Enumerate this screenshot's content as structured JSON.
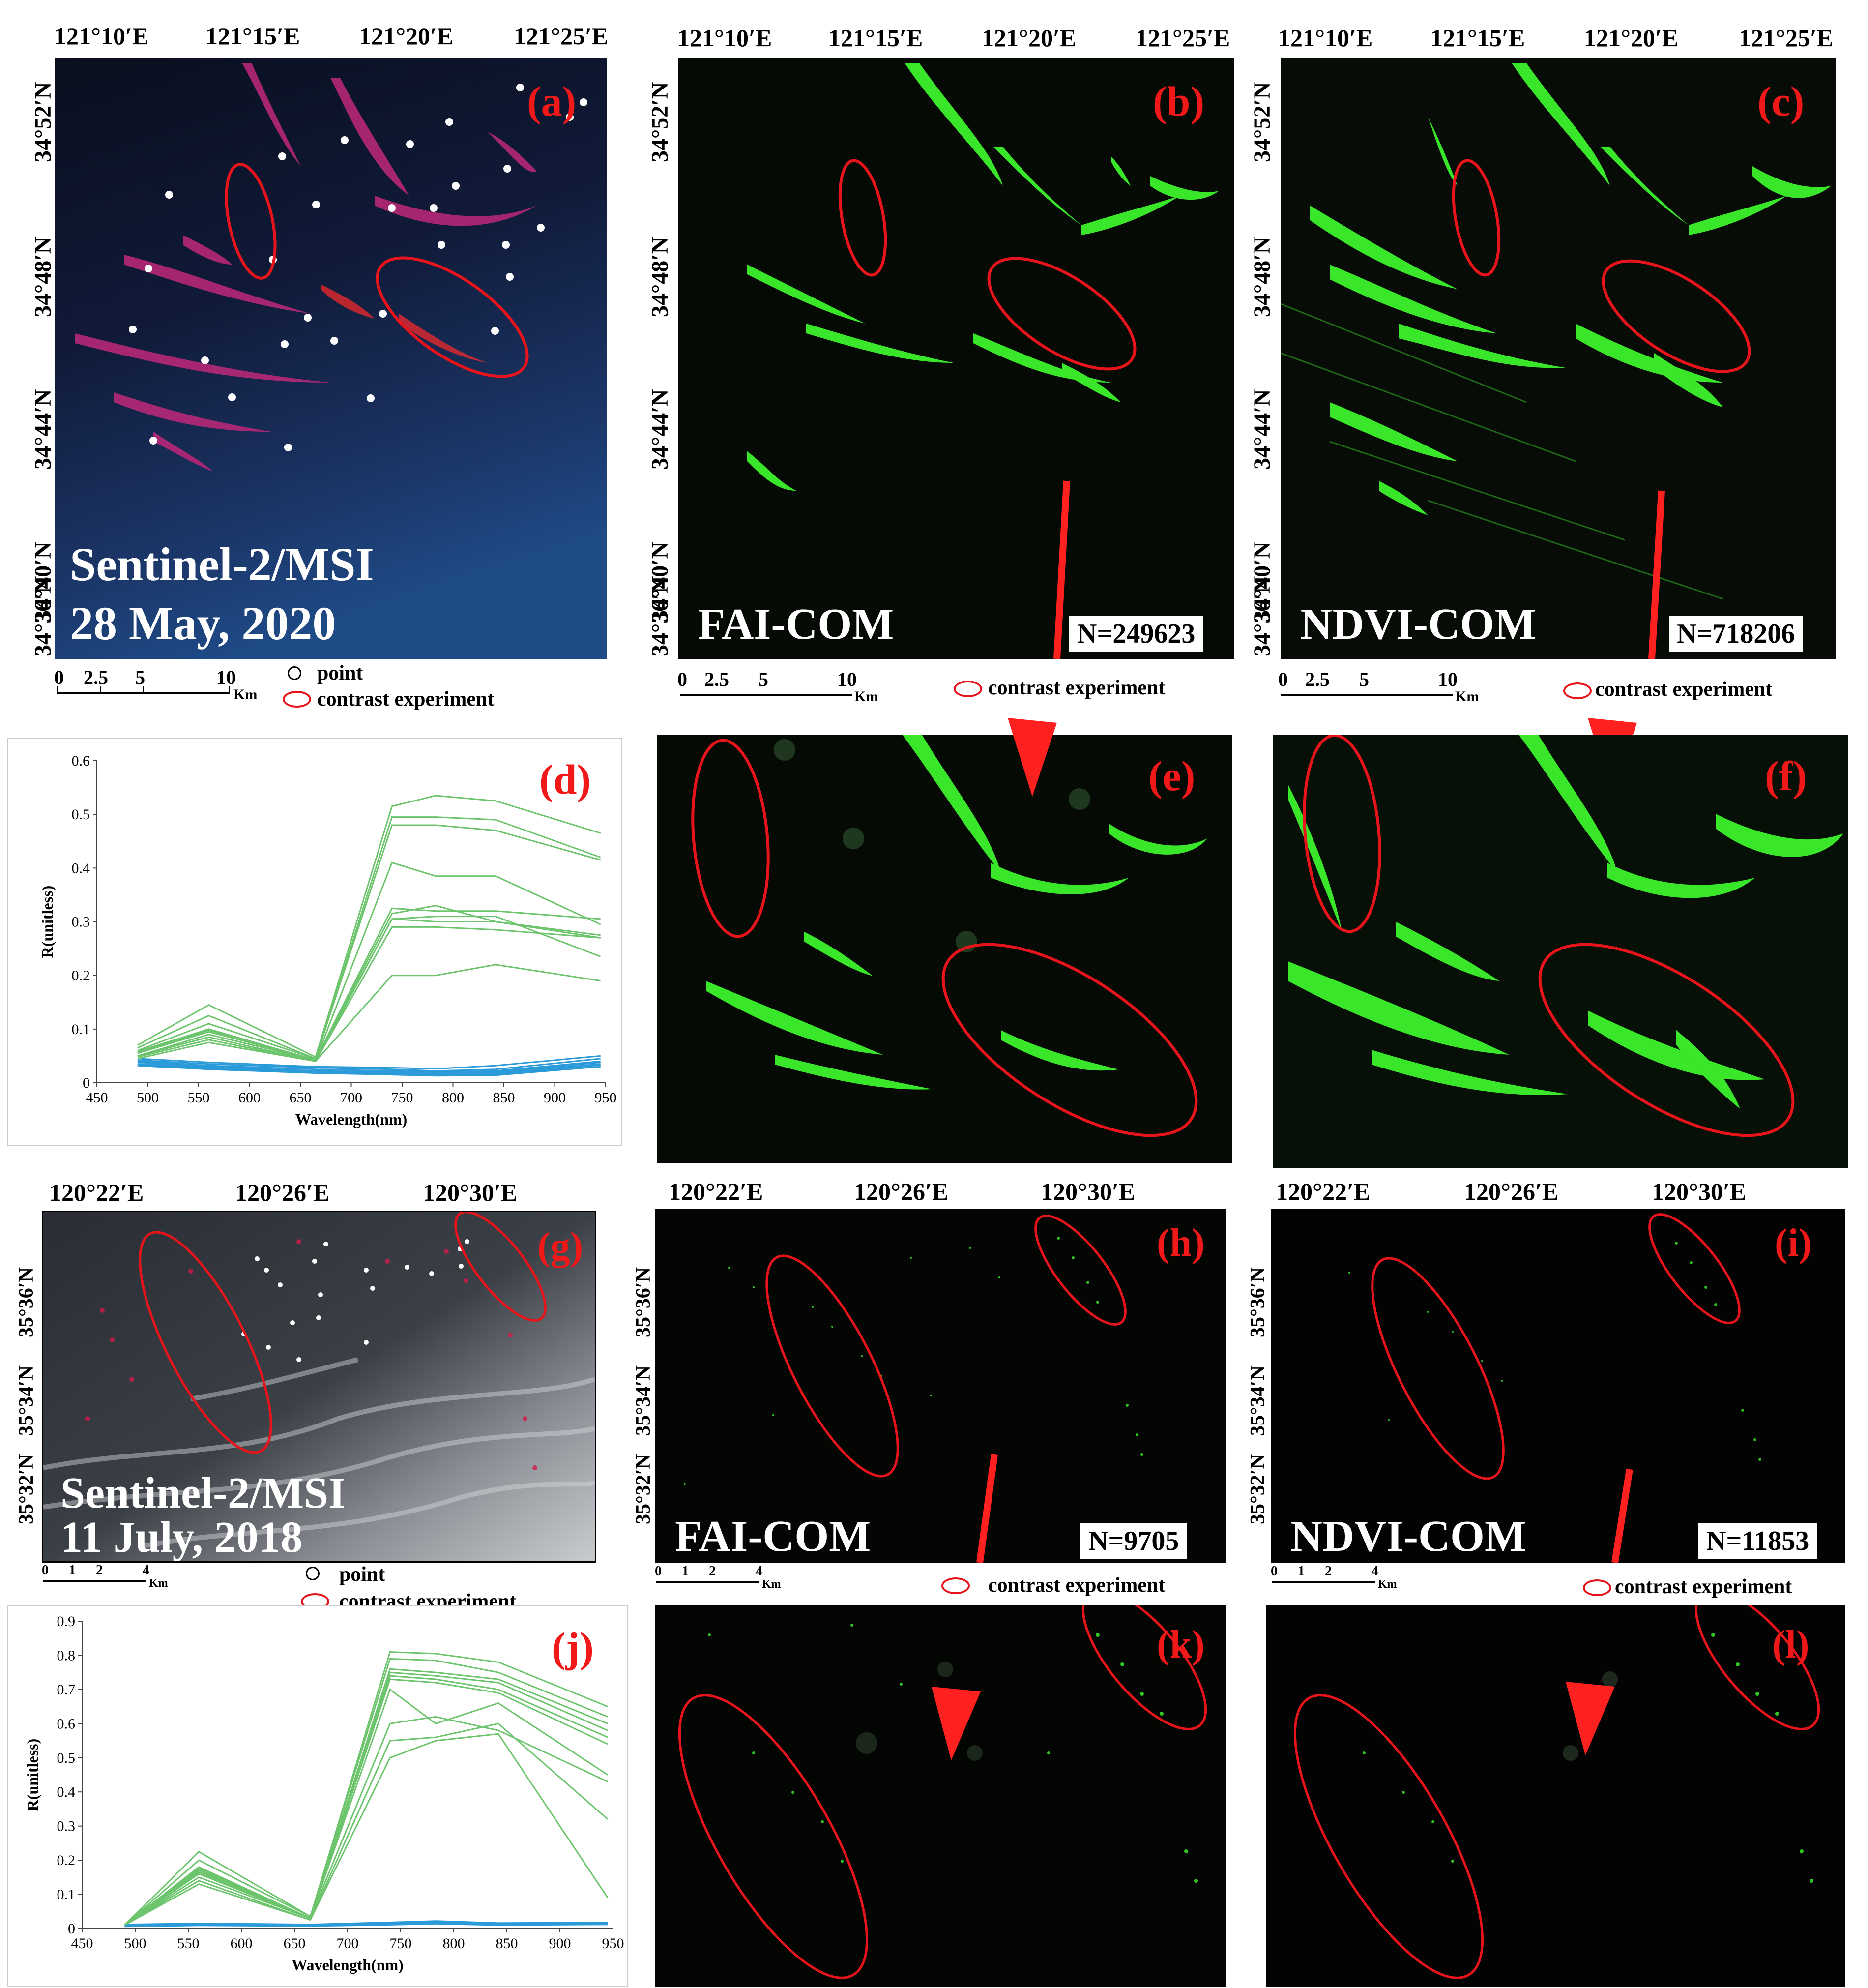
{
  "panels": {
    "a": {
      "label": "(a)",
      "sat": "Sentinel-2/MSI",
      "date": "28 May, 2020"
    },
    "b": {
      "label": "(b)",
      "method": "FAI-COM",
      "count": "N=249623"
    },
    "c": {
      "label": "(c)",
      "method": "NDVI-COM",
      "count": "N=718206"
    },
    "d": {
      "label": "(d)"
    },
    "e": {
      "label": "(e)"
    },
    "f": {
      "label": "(f)"
    },
    "g": {
      "label": "(g)",
      "sat": "Sentinel-2/MSI",
      "date": "11 July, 2018"
    },
    "h": {
      "label": "(h)",
      "method": "FAI-COM",
      "count": "N=9705"
    },
    "i": {
      "label": "(i)",
      "method": "NDVI-COM",
      "count": "N=11853"
    },
    "j": {
      "label": "(j)"
    },
    "k": {
      "label": "(k)"
    },
    "l": {
      "label": "(l)"
    }
  },
  "top_lon_ticks": [
    "121°10′E",
    "121°15′E",
    "121°20′E",
    "121°25′E"
  ],
  "top_lat_ticks": [
    "34°52′N",
    "34°48′N",
    "34°44′N",
    "34°40′N",
    "34°36′N"
  ],
  "bottom_lon_ticks": [
    "120°22′E",
    "120°26′E",
    "120°30′E"
  ],
  "bottom_lat_ticks": [
    "35°36′N",
    "35°34′N",
    "35°32′N"
  ],
  "scalebar_top": {
    "ticks": [
      "0",
      "2.5",
      "5",
      "10"
    ],
    "unit": "Km"
  },
  "scalebar_bottom": {
    "ticks": [
      "0",
      "1",
      "2",
      "4"
    ],
    "unit": "Km"
  },
  "legend": {
    "point": "point",
    "contrast": "contrast experiment"
  },
  "colors": {
    "label_red": "#f01818",
    "green_line": "#6cc46c",
    "blue_line": "#2b9ad8",
    "algae_green": "#39e62a"
  },
  "chart_data": [
    {
      "type": "line",
      "panel": "(d)",
      "xlabel": "Wavelength(nm)",
      "ylabel": "R(unitless)",
      "xlim": [
        450,
        950
      ],
      "ylim": [
        0,
        0.6
      ],
      "xticks": [
        450,
        500,
        550,
        600,
        650,
        700,
        750,
        800,
        850,
        900,
        950
      ],
      "yticks": [
        0,
        0.1,
        0.2,
        0.3,
        0.4,
        0.5,
        0.6
      ],
      "x": [
        490,
        560,
        665,
        740,
        783,
        842,
        945
      ],
      "green_series": [
        [
          0.07,
          0.145,
          0.048,
          0.515,
          0.535,
          0.525,
          0.465
        ],
        [
          0.065,
          0.125,
          0.045,
          0.495,
          0.495,
          0.49,
          0.42
        ],
        [
          0.06,
          0.11,
          0.045,
          0.48,
          0.48,
          0.47,
          0.415
        ],
        [
          0.058,
          0.1,
          0.042,
          0.41,
          0.385,
          0.385,
          0.295
        ],
        [
          0.056,
          0.098,
          0.043,
          0.325,
          0.32,
          0.32,
          0.305
        ],
        [
          0.055,
          0.095,
          0.043,
          0.315,
          0.33,
          0.3,
          0.27
        ],
        [
          0.05,
          0.09,
          0.042,
          0.305,
          0.31,
          0.31,
          0.235
        ],
        [
          0.05,
          0.085,
          0.04,
          0.305,
          0.3,
          0.3,
          0.275
        ],
        [
          0.048,
          0.08,
          0.04,
          0.29,
          0.29,
          0.285,
          0.27
        ],
        [
          0.045,
          0.075,
          0.04,
          0.2,
          0.2,
          0.22,
          0.19
        ]
      ],
      "blue_series": [
        [
          0.045,
          0.038,
          0.03,
          0.028,
          0.026,
          0.032,
          0.05
        ],
        [
          0.042,
          0.035,
          0.028,
          0.025,
          0.022,
          0.025,
          0.045
        ],
        [
          0.04,
          0.032,
          0.025,
          0.022,
          0.02,
          0.022,
          0.04
        ],
        [
          0.038,
          0.03,
          0.022,
          0.02,
          0.018,
          0.02,
          0.038
        ],
        [
          0.035,
          0.028,
          0.02,
          0.018,
          0.016,
          0.018,
          0.035
        ],
        [
          0.033,
          0.026,
          0.018,
          0.016,
          0.014,
          0.016,
          0.033
        ],
        [
          0.032,
          0.025,
          0.018,
          0.015,
          0.013,
          0.014,
          0.03
        ]
      ]
    },
    {
      "type": "line",
      "panel": "(j)",
      "xlabel": "Wavelength(nm)",
      "ylabel": "R(unitless)",
      "xlim": [
        450,
        950
      ],
      "ylim": [
        0,
        0.9
      ],
      "xticks": [
        450,
        500,
        550,
        600,
        650,
        700,
        750,
        800,
        850,
        900,
        950
      ],
      "yticks": [
        0,
        0.1,
        0.2,
        0.3,
        0.4,
        0.5,
        0.6,
        0.7,
        0.8,
        0.9
      ],
      "x": [
        490,
        560,
        665,
        740,
        783,
        842,
        945
      ],
      "green_series": [
        [
          0.01,
          0.225,
          0.035,
          0.81,
          0.805,
          0.78,
          0.65
        ],
        [
          0.01,
          0.2,
          0.035,
          0.79,
          0.785,
          0.75,
          0.62
        ],
        [
          0.01,
          0.18,
          0.03,
          0.76,
          0.75,
          0.73,
          0.6
        ],
        [
          0.01,
          0.175,
          0.03,
          0.75,
          0.74,
          0.72,
          0.58
        ],
        [
          0.01,
          0.17,
          0.03,
          0.74,
          0.73,
          0.7,
          0.56
        ],
        [
          0.01,
          0.165,
          0.03,
          0.73,
          0.72,
          0.69,
          0.54
        ],
        [
          0.01,
          0.16,
          0.03,
          0.7,
          0.6,
          0.66,
          0.45
        ],
        [
          0.01,
          0.15,
          0.03,
          0.6,
          0.62,
          0.58,
          0.43
        ],
        [
          0.01,
          0.14,
          0.025,
          0.55,
          0.56,
          0.6,
          0.32
        ],
        [
          0.01,
          0.13,
          0.025,
          0.5,
          0.55,
          0.57,
          0.09
        ]
      ],
      "blue_series": [
        [
          0.012,
          0.015,
          0.012,
          0.018,
          0.022,
          0.016,
          0.018
        ],
        [
          0.01,
          0.013,
          0.01,
          0.015,
          0.02,
          0.014,
          0.016
        ],
        [
          0.008,
          0.012,
          0.009,
          0.013,
          0.018,
          0.012,
          0.014
        ],
        [
          0.007,
          0.01,
          0.008,
          0.012,
          0.016,
          0.011,
          0.013
        ],
        [
          0.006,
          0.009,
          0.007,
          0.011,
          0.014,
          0.01,
          0.012
        ]
      ]
    }
  ]
}
